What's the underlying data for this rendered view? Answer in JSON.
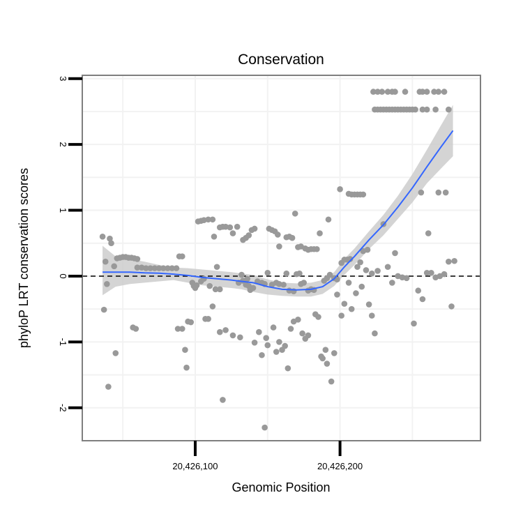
{
  "chart_data": {
    "type": "scatter",
    "title": "Conservation",
    "xlabel": "Genomic Position",
    "ylabel": "phyloP LRT conservation scores",
    "xlim": [
      20426022,
      20426297
    ],
    "ylim": [
      -2.5,
      3.05
    ],
    "x_ticks": [
      20426100,
      20426200
    ],
    "x_tick_labels": [
      "20,426,100",
      "20,426,200"
    ],
    "y_ticks": [
      -2,
      -1,
      0,
      1,
      2,
      3
    ],
    "y_tick_labels": [
      "-2",
      "-1",
      "0",
      "1",
      "2",
      "3"
    ],
    "grid": true,
    "reference_line": {
      "y": 0,
      "style": "dashed"
    },
    "colors": {
      "points": "#999999",
      "smooth": "#3366ff",
      "ribbon": "#cccccc",
      "frame": "#7f7f7f",
      "grid": "#f2f2f2"
    },
    "points": [
      [
        20426036,
        0.6
      ],
      [
        20426038,
        0.22
      ],
      [
        20426039,
        -0.12
      ],
      [
        20426037,
        -0.51
      ],
      [
        20426040,
        -1.68
      ],
      [
        20426041,
        0.57
      ],
      [
        20426042,
        0.5
      ],
      [
        20426044,
        0.15
      ],
      [
        20426045,
        -1.17
      ],
      [
        20426046,
        0.27
      ],
      [
        20426048,
        0.28
      ],
      [
        20426050,
        0.29
      ],
      [
        20426052,
        0.29
      ],
      [
        20426054,
        0.28
      ],
      [
        20426056,
        0.28
      ],
      [
        20426058,
        0.27
      ],
      [
        20426060,
        0.26
      ],
      [
        20426057,
        -0.78
      ],
      [
        20426059,
        -0.8
      ],
      [
        20426060,
        0.13
      ],
      [
        20426063,
        0.13
      ],
      [
        20426066,
        0.12
      ],
      [
        20426069,
        0.12
      ],
      [
        20426072,
        0.12
      ],
      [
        20426075,
        0.12
      ],
      [
        20426078,
        0.12
      ],
      [
        20426081,
        0.12
      ],
      [
        20426084,
        0.12
      ],
      [
        20426087,
        0.12
      ],
      [
        20426089,
        0.3
      ],
      [
        20426091,
        0.3
      ],
      [
        20426088,
        -0.8
      ],
      [
        20426091,
        -0.8
      ],
      [
        20426093,
        -1.12
      ],
      [
        20426094,
        -1.39
      ],
      [
        20426095,
        -0.69
      ],
      [
        20426097,
        -0.7
      ],
      [
        20426098,
        -0.1
      ],
      [
        20426099,
        -0.15
      ],
      [
        20426100,
        -0.18
      ],
      [
        20426101,
        -0.14
      ],
      [
        20426102,
        0.83
      ],
      [
        20426104,
        0.84
      ],
      [
        20426106,
        0.85
      ],
      [
        20426109,
        0.86
      ],
      [
        20426112,
        0.86
      ],
      [
        20426107,
        -0.65
      ],
      [
        20426109,
        -0.65
      ],
      [
        20426112,
        -0.46
      ],
      [
        20426104,
        -0.08
      ],
      [
        20426106,
        -0.04
      ],
      [
        20426110,
        -0.15
      ],
      [
        20426114,
        -0.2
      ],
      [
        20426117,
        -0.2
      ],
      [
        20426113,
        0.6
      ],
      [
        20426115,
        0.14
      ],
      [
        20426117,
        -0.85
      ],
      [
        20426119,
        -1.88
      ],
      [
        20426121,
        -0.82
      ],
      [
        20426117,
        0.74
      ],
      [
        20426119,
        0.75
      ],
      [
        20426121,
        0.75
      ],
      [
        20426124,
        0.74
      ],
      [
        20426126,
        0.65
      ],
      [
        20426129,
        0.75
      ],
      [
        20426126,
        -0.9
      ],
      [
        20426131,
        -0.93
      ],
      [
        20426130,
        -0.1
      ],
      [
        20426133,
        -0.07
      ],
      [
        20426135,
        -0.13
      ],
      [
        20426137,
        -0.15
      ],
      [
        20426138,
        -0.21
      ],
      [
        20426140,
        -0.18
      ],
      [
        20426132,
        0.02
      ],
      [
        20426136,
        -0.04
      ],
      [
        20426133,
        0.55
      ],
      [
        20426135,
        0.58
      ],
      [
        20426137,
        0.62
      ],
      [
        20426139,
        0.7
      ],
      [
        20426141,
        0.72
      ],
      [
        20426141,
        -1.01
      ],
      [
        20426144,
        -0.85
      ],
      [
        20426146,
        -1.2
      ],
      [
        20426148,
        -2.3
      ],
      [
        20426149,
        -0.94
      ],
      [
        20426150,
        -1.05
      ],
      [
        20426143,
        -0.08
      ],
      [
        20426146,
        -0.1
      ],
      [
        20426148,
        -0.12
      ],
      [
        20426150,
        0.05
      ],
      [
        20426153,
        -0.13
      ],
      [
        20426151,
        0.72
      ],
      [
        20426153,
        0.7
      ],
      [
        20426155,
        0.68
      ],
      [
        20426157,
        0.63
      ],
      [
        20426158,
        0.45
      ],
      [
        20426154,
        -0.78
      ],
      [
        20426156,
        -1.15
      ],
      [
        20426158,
        -1.0
      ],
      [
        20426160,
        -1.12
      ],
      [
        20426162,
        -1.06
      ],
      [
        20426164,
        -1.4
      ],
      [
        20426156,
        -0.1
      ],
      [
        20426158,
        -0.12
      ],
      [
        20426161,
        -0.13
      ],
      [
        20426163,
        0.04
      ],
      [
        20426165,
        -0.22
      ],
      [
        20426168,
        -0.23
      ],
      [
        20426170,
        0.03
      ],
      [
        20426172,
        0.04
      ],
      [
        20426163,
        0.59
      ],
      [
        20426165,
        0.6
      ],
      [
        20426167,
        0.58
      ],
      [
        20426169,
        0.95
      ],
      [
        20426171,
        0.44
      ],
      [
        20426173,
        0.45
      ],
      [
        20426166,
        -0.8
      ],
      [
        20426168,
        -0.69
      ],
      [
        20426171,
        -0.66
      ],
      [
        20426174,
        -0.87
      ],
      [
        20426176,
        -0.95
      ],
      [
        20426178,
        -0.9
      ],
      [
        20426173,
        -0.12
      ],
      [
        20426175,
        -0.1
      ],
      [
        20426178,
        -0.22
      ],
      [
        20426180,
        -0.2
      ],
      [
        20426182,
        -0.21
      ],
      [
        20426176,
        0.42
      ],
      [
        20426178,
        0.4
      ],
      [
        20426180,
        0.41
      ],
      [
        20426182,
        0.41
      ],
      [
        20426184,
        0.41
      ],
      [
        20426186,
        0.65
      ],
      [
        20426183,
        -0.58
      ],
      [
        20426185,
        -0.62
      ],
      [
        20426187,
        -1.22
      ],
      [
        20426188,
        -1.25
      ],
      [
        20426190,
        -1.12
      ],
      [
        20426191,
        -1.33
      ],
      [
        20426189,
        -0.07
      ],
      [
        20426191,
        -0.03
      ],
      [
        20426193,
        0.02
      ],
      [
        20426196,
        -0.03
      ],
      [
        20426198,
        -0.05
      ],
      [
        20426192,
        0.86
      ],
      [
        20426194,
        -1.6
      ],
      [
        20426196,
        -1.17
      ],
      [
        20426198,
        -0.28
      ],
      [
        20426200,
        1.32
      ],
      [
        20426201,
        -0.6
      ],
      [
        20426201,
        0.2
      ],
      [
        20426203,
        0.25
      ],
      [
        20426205,
        0.25
      ],
      [
        20426207,
        0.26
      ],
      [
        20426203,
        -0.42
      ],
      [
        20426206,
        -0.1
      ],
      [
        20426208,
        -0.5
      ],
      [
        20426211,
        -0.26
      ],
      [
        20426206,
        1.25
      ],
      [
        20426208,
        1.24
      ],
      [
        20426210,
        1.24
      ],
      [
        20426212,
        1.24
      ],
      [
        20426214,
        1.24
      ],
      [
        20426216,
        1.24
      ],
      [
        20426212,
        0.14
      ],
      [
        20426214,
        0.21
      ],
      [
        20426216,
        0.38
      ],
      [
        20426219,
        0.4
      ],
      [
        20426222,
        0.04
      ],
      [
        20426215,
        -0.16
      ],
      [
        20426218,
        0.09
      ],
      [
        20426220,
        -0.43
      ],
      [
        20426222,
        -0.6
      ],
      [
        20426224,
        -0.87
      ],
      [
        20426226,
        0.08
      ],
      [
        20426223,
        2.8
      ],
      [
        20426226,
        2.8
      ],
      [
        20426229,
        2.8
      ],
      [
        20426233,
        2.8
      ],
      [
        20426236,
        2.8
      ],
      [
        20426238,
        2.8
      ],
      [
        20426245,
        2.8
      ],
      [
        20426255,
        2.8
      ],
      [
        20426257,
        2.8
      ],
      [
        20426260,
        2.8
      ],
      [
        20426265,
        2.8
      ],
      [
        20426268,
        2.8
      ],
      [
        20426272,
        2.8
      ],
      [
        20426224,
        2.53
      ],
      [
        20426226,
        2.53
      ],
      [
        20426228,
        2.53
      ],
      [
        20426230,
        2.53
      ],
      [
        20426232,
        2.53
      ],
      [
        20426234,
        2.53
      ],
      [
        20426236,
        2.53
      ],
      [
        20426238,
        2.53
      ],
      [
        20426240,
        2.53
      ],
      [
        20426242,
        2.53
      ],
      [
        20426244,
        2.53
      ],
      [
        20426246,
        2.53
      ],
      [
        20426248,
        2.53
      ],
      [
        20426250,
        2.53
      ],
      [
        20426252,
        2.53
      ],
      [
        20426257,
        2.53
      ],
      [
        20426260,
        2.53
      ],
      [
        20426266,
        2.53
      ],
      [
        20426275,
        2.53
      ],
      [
        20426230,
        0.79
      ],
      [
        20426233,
        0.14
      ],
      [
        20426236,
        -0.1
      ],
      [
        20426238,
        0.35
      ],
      [
        20426240,
        0.0
      ],
      [
        20426243,
        -0.02
      ],
      [
        20426246,
        -0.03
      ],
      [
        20426251,
        -0.72
      ],
      [
        20426254,
        -0.22
      ],
      [
        20426257,
        -0.35
      ],
      [
        20426260,
        0.05
      ],
      [
        20426263,
        0.05
      ],
      [
        20426266,
        -0.02
      ],
      [
        20426269,
        0.0
      ],
      [
        20426272,
        0.03
      ],
      [
        20426256,
        1.27
      ],
      [
        20426261,
        0.65
      ],
      [
        20426268,
        1.27
      ],
      [
        20426273,
        1.27
      ],
      [
        20426275,
        0.22
      ],
      [
        20426277,
        -0.46
      ],
      [
        20426279,
        0.23
      ]
    ],
    "smooth_line": [
      [
        20426036,
        0.06
      ],
      [
        20426045,
        0.06
      ],
      [
        20426055,
        0.06
      ],
      [
        20426065,
        0.05
      ],
      [
        20426075,
        0.045
      ],
      [
        20426085,
        0.03
      ],
      [
        20426095,
        0.01
      ],
      [
        20426105,
        -0.02
      ],
      [
        20426115,
        -0.04
      ],
      [
        20426125,
        -0.06
      ],
      [
        20426132,
        -0.08
      ],
      [
        20426140,
        -0.1
      ],
      [
        20426150,
        -0.16
      ],
      [
        20426160,
        -0.2
      ],
      [
        20426170,
        -0.21
      ],
      [
        20426180,
        -0.2
      ],
      [
        20426188,
        -0.16
      ],
      [
        20426196,
        -0.04
      ],
      [
        20426203,
        0.14
      ],
      [
        20426210,
        0.3
      ],
      [
        20426220,
        0.55
      ],
      [
        20426230,
        0.78
      ],
      [
        20426240,
        1.05
      ],
      [
        20426250,
        1.34
      ],
      [
        20426260,
        1.66
      ],
      [
        20426270,
        1.97
      ],
      [
        20426278,
        2.21
      ]
    ],
    "ribbon_upper": [
      [
        20426036,
        0.46
      ],
      [
        20426045,
        0.3
      ],
      [
        20426055,
        0.26
      ],
      [
        20426065,
        0.22
      ],
      [
        20426075,
        0.17
      ],
      [
        20426085,
        0.13
      ],
      [
        20426095,
        0.12
      ],
      [
        20426105,
        0.1
      ],
      [
        20426115,
        0.08
      ],
      [
        20426125,
        0.06
      ],
      [
        20426132,
        0.04
      ],
      [
        20426140,
        0.02
      ],
      [
        20426150,
        -0.05
      ],
      [
        20426160,
        -0.1
      ],
      [
        20426170,
        -0.11
      ],
      [
        20426180,
        -0.1
      ],
      [
        20426188,
        -0.06
      ],
      [
        20426196,
        0.06
      ],
      [
        20426203,
        0.26
      ],
      [
        20426210,
        0.42
      ],
      [
        20426220,
        0.68
      ],
      [
        20426230,
        0.93
      ],
      [
        20426240,
        1.22
      ],
      [
        20426250,
        1.55
      ],
      [
        20426260,
        1.92
      ],
      [
        20426270,
        2.3
      ],
      [
        20426278,
        2.6
      ]
    ],
    "ribbon_lower": [
      [
        20426036,
        -0.29
      ],
      [
        20426045,
        -0.16
      ],
      [
        20426055,
        -0.12
      ],
      [
        20426065,
        -0.1
      ],
      [
        20426075,
        -0.08
      ],
      [
        20426085,
        -0.06
      ],
      [
        20426095,
        -0.1
      ],
      [
        20426105,
        -0.14
      ],
      [
        20426115,
        -0.16
      ],
      [
        20426125,
        -0.18
      ],
      [
        20426132,
        -0.2
      ],
      [
        20426140,
        -0.24
      ],
      [
        20426150,
        -0.28
      ],
      [
        20426160,
        -0.3
      ],
      [
        20426170,
        -0.31
      ],
      [
        20426180,
        -0.31
      ],
      [
        20426188,
        -0.27
      ],
      [
        20426196,
        -0.15
      ],
      [
        20426203,
        0.02
      ],
      [
        20426210,
        0.17
      ],
      [
        20426220,
        0.41
      ],
      [
        20426230,
        0.62
      ],
      [
        20426240,
        0.87
      ],
      [
        20426250,
        1.12
      ],
      [
        20426260,
        1.41
      ],
      [
        20426270,
        1.64
      ],
      [
        20426278,
        1.82
      ]
    ]
  }
}
